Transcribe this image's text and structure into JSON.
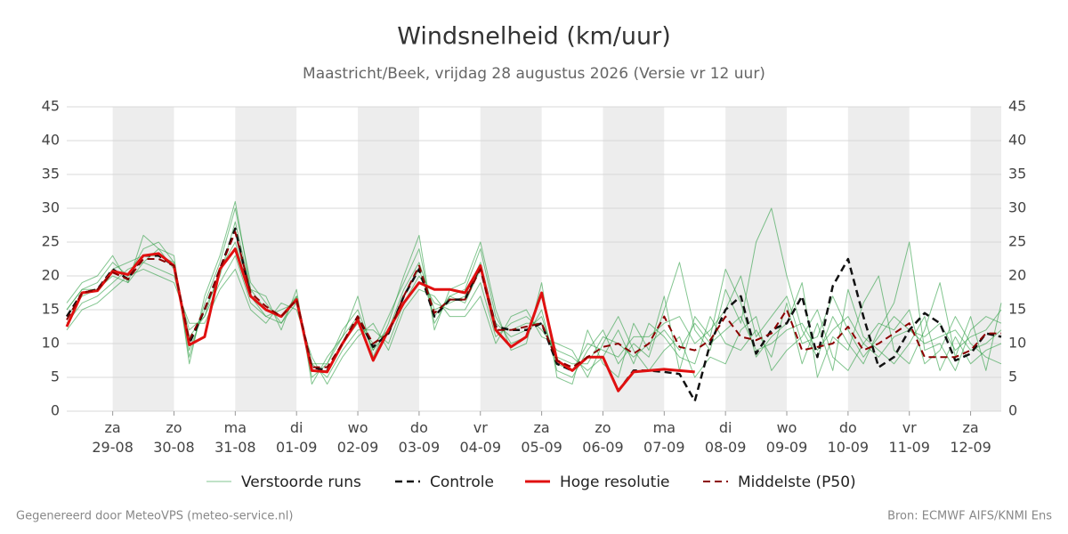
{
  "chart_data": {
    "type": "line",
    "title": "Windsnelheid (km/uur)",
    "subtitle": "Maastricht/Beek, vrijdag 28 augustus 2026 (Versie vr 12 uur)",
    "footer_left": "Gegenereerd door MeteoVPS (meteo-service.nl)",
    "footer_right": "Bron: ECMWF AIFS/KNMI Ens",
    "xlim": [
      0.25,
      15.5
    ],
    "xticks": [
      {
        "value": 1,
        "label": "za\n29-08"
      },
      {
        "value": 2,
        "label": "zo\n30-08"
      },
      {
        "value": 3,
        "label": "ma\n31-08"
      },
      {
        "value": 4,
        "label": "di\n01-09"
      },
      {
        "value": 5,
        "label": "wo\n02-09"
      },
      {
        "value": 6,
        "label": "do\n03-09"
      },
      {
        "value": 7,
        "label": "vr\n04-09"
      },
      {
        "value": 8,
        "label": "za\n05-09"
      },
      {
        "value": 9,
        "label": "zo\n06-09"
      },
      {
        "value": 10,
        "label": "ma\n07-09"
      },
      {
        "value": 11,
        "label": "di\n08-09"
      },
      {
        "value": 12,
        "label": "wo\n09-09"
      },
      {
        "value": 13,
        "label": "do\n10-09"
      },
      {
        "value": 14,
        "label": "vr\n11-09"
      },
      {
        "value": 15,
        "label": "za\n12-09"
      }
    ],
    "ylim": [
      0,
      45
    ],
    "yticks": [
      0,
      5,
      10,
      15,
      20,
      25,
      30,
      35,
      40,
      45
    ],
    "grid": true,
    "x": [
      0.25,
      0.5,
      0.75,
      1,
      1.25,
      1.5,
      1.75,
      2,
      2.25,
      2.5,
      2.75,
      3,
      3.25,
      3.5,
      3.75,
      4,
      4.25,
      4.5,
      4.75,
      5,
      5.25,
      5.5,
      5.75,
      6,
      6.25,
      6.5,
      6.75,
      7,
      7.25,
      7.5,
      7.75,
      8,
      8.25,
      8.5,
      8.75,
      9,
      9.25,
      9.5,
      9.75,
      10,
      10.25,
      10.5,
      10.75,
      11,
      11.25,
      11.5,
      11.75,
      12,
      12.25,
      12.5,
      12.75,
      13,
      13.25,
      13.5,
      13.75,
      14,
      14.25,
      14.5,
      14.75,
      15,
      15.25,
      15.5
    ],
    "series": [
      {
        "name": "Verstoorde runs",
        "color": "#2e9e44",
        "members": [
          [
            15,
            18,
            19,
            22,
            20,
            24,
            25,
            22,
            8,
            16,
            22,
            30,
            19,
            16,
            13,
            17,
            5,
            7,
            12,
            15,
            9,
            14,
            19,
            24,
            13,
            17,
            18,
            24,
            14,
            10,
            11,
            15,
            6,
            5,
            9,
            12,
            7,
            10,
            8,
            15,
            22,
            12,
            9,
            18,
            13,
            25,
            30,
            20,
            12,
            8,
            14,
            10,
            7,
            12,
            16,
            25,
            9,
            10,
            6,
            12,
            14,
            13
          ],
          [
            13,
            16,
            17,
            19,
            21,
            22,
            21,
            20,
            12,
            14,
            19,
            23,
            16,
            14,
            15,
            16,
            7,
            5,
            9,
            12,
            12,
            10,
            16,
            20,
            16,
            15,
            15,
            19,
            11,
            13,
            14,
            12,
            9,
            8,
            6,
            8,
            12,
            7,
            13,
            11,
            8,
            7,
            14,
            10,
            9,
            12,
            8,
            16,
            7,
            13,
            6,
            18,
            11,
            9,
            7,
            10,
            14,
            6,
            11,
            7,
            9,
            10
          ],
          [
            16,
            19,
            20,
            23,
            19,
            26,
            24,
            23,
            7,
            17,
            23,
            31,
            18,
            17,
            12,
            18,
            4,
            8,
            11,
            17,
            8,
            13,
            20,
            26,
            12,
            18,
            19,
            25,
            15,
            9,
            10,
            19,
            5,
            4,
            12,
            7,
            5,
            13,
            9,
            17,
            6,
            14,
            11,
            21,
            16,
            8,
            11,
            13,
            19,
            5,
            11,
            9,
            16,
            20,
            9,
            7,
            12,
            19,
            8,
            14,
            6,
            16
          ],
          [
            12,
            15,
            16,
            18,
            20,
            21,
            20,
            19,
            13,
            13,
            18,
            21,
            15,
            13,
            16,
            15,
            8,
            4,
            8,
            11,
            13,
            9,
            15,
            18,
            17,
            14,
            14,
            17,
            10,
            14,
            15,
            11,
            10,
            9,
            5,
            10,
            14,
            9,
            6,
            9,
            11,
            5,
            8,
            7,
            12,
            14,
            6,
            9,
            11,
            15,
            8,
            6,
            10,
            13,
            12,
            15,
            7,
            9,
            14,
            10,
            8,
            7
          ],
          [
            14,
            17,
            18,
            21,
            22,
            23,
            23,
            22,
            9,
            15,
            20,
            28,
            18,
            15,
            14,
            17,
            6,
            6,
            10,
            13,
            10,
            12,
            18,
            22,
            15,
            16,
            17,
            22,
            13,
            11,
            12,
            14,
            7,
            6,
            10,
            9,
            8,
            11,
            11,
            13,
            14,
            10,
            12,
            15,
            20,
            11,
            14,
            17,
            10,
            11,
            17,
            12,
            8,
            11,
            14,
            12,
            11,
            13,
            9,
            11,
            12,
            15
          ],
          [
            15,
            18,
            18,
            20,
            19,
            22,
            24,
            21,
            11,
            14,
            21,
            25,
            17,
            14,
            13,
            16,
            7,
            7,
            11,
            14,
            9,
            12,
            17,
            21,
            14,
            17,
            16,
            21,
            12,
            12,
            13,
            13,
            8,
            7,
            7,
            11,
            10,
            8,
            10,
            12,
            9,
            13,
            10,
            12,
            14,
            9,
            10,
            12,
            13,
            9,
            12,
            14,
            10,
            8,
            11,
            12,
            10,
            11,
            12,
            9,
            10,
            12
          ]
        ]
      },
      {
        "name": "Controle",
        "color": "#111111",
        "dash": true,
        "values": [
          14,
          17.5,
          18,
          21,
          19.5,
          23,
          23,
          21.5,
          10,
          15,
          21,
          27,
          17,
          15,
          14,
          16.5,
          6.5,
          6,
          10,
          14,
          9.5,
          11.5,
          17,
          21,
          14,
          16.5,
          16.5,
          21.5,
          12.5,
          12,
          12,
          13,
          7,
          6,
          8,
          8,
          3,
          6,
          6,
          5.8,
          5.5,
          1.5,
          10,
          15,
          17,
          8.5,
          12,
          13,
          17,
          8,
          18.5,
          22.5,
          14,
          6.5,
          8,
          12,
          14.5,
          13,
          7.5,
          8.5,
          11.5,
          11
        ]
      },
      {
        "name": "Hoge resolutie",
        "color": "#e01010",
        "values": [
          12.5,
          17.5,
          17.8,
          20.7,
          20.2,
          23,
          23.3,
          21.5,
          9.8,
          11,
          21,
          24,
          17,
          15,
          14,
          16.5,
          6,
          5.8,
          10,
          13.5,
          7.5,
          12,
          16,
          19,
          18,
          18,
          17.5,
          21.5,
          12,
          9.5,
          11,
          17.5,
          7.5,
          6,
          8,
          8,
          3,
          5.8,
          6,
          6.2,
          6,
          5.8,
          null,
          null,
          null,
          null,
          null,
          null,
          null,
          null,
          null,
          null,
          null,
          null,
          null,
          null,
          null,
          null,
          null,
          null,
          null,
          null
        ]
      },
      {
        "name": "Middelste (P50)",
        "color": "#8b0000",
        "dash": true,
        "values": [
          13.5,
          17.5,
          18,
          20.5,
          19.5,
          22.5,
          22.5,
          21.5,
          10.5,
          15,
          21,
          26.5,
          17.5,
          15.5,
          14,
          16.5,
          6.5,
          6.5,
          10,
          14,
          10,
          11.5,
          17,
          21.5,
          14.5,
          16.5,
          16.5,
          21,
          12,
          12,
          12.5,
          13,
          7.5,
          6.5,
          8,
          9.5,
          10,
          8.5,
          10,
          14,
          9.5,
          9,
          10.5,
          14,
          11,
          10.5,
          11.5,
          15,
          9,
          9.5,
          10,
          12.5,
          9,
          10,
          11.5,
          13,
          8,
          8,
          8,
          9,
          11.5,
          11.5
        ]
      }
    ]
  }
}
